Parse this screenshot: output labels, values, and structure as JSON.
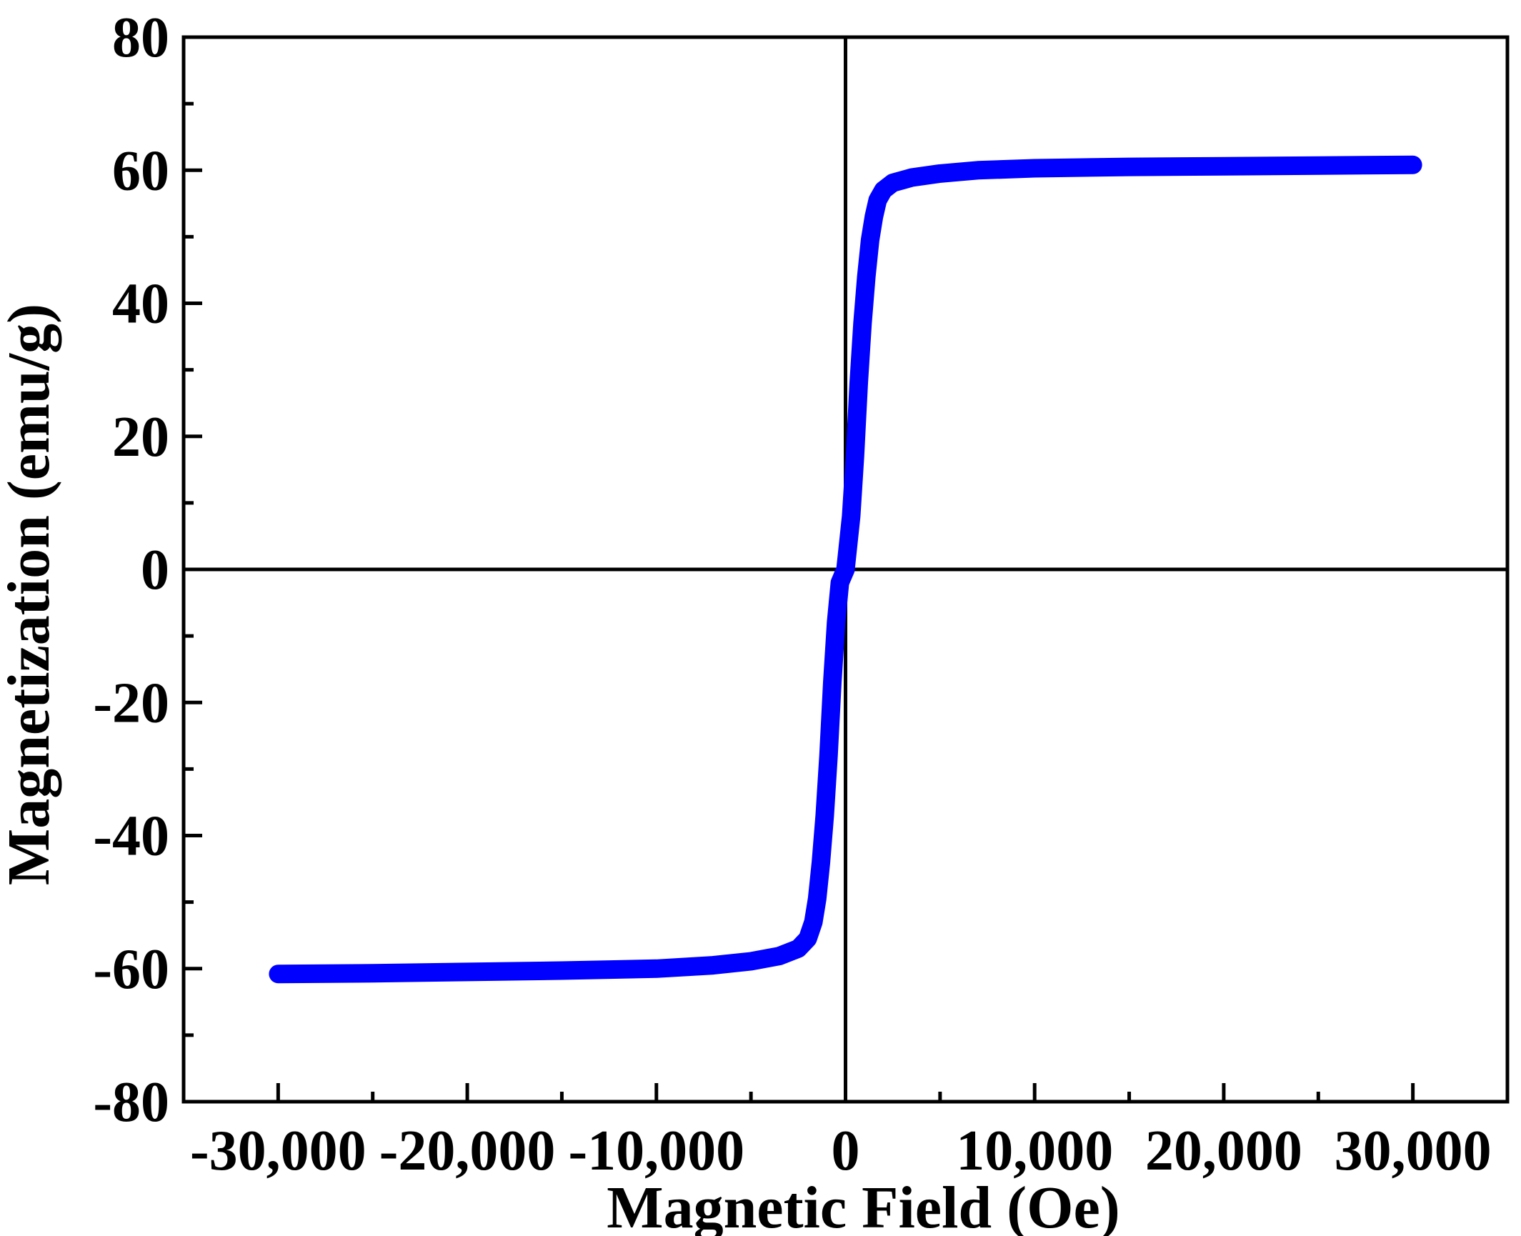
{
  "chart_data": {
    "type": "line",
    "title": "",
    "xlabel": "Magnetic Field (Oe)",
    "ylabel": "Magnetization (emu/g)",
    "xlim": [
      -35000,
      35000
    ],
    "ylim": [
      -80,
      80
    ],
    "x_ticks": [
      -30000,
      -20000,
      -10000,
      0,
      10000,
      20000,
      30000
    ],
    "x_tick_labels": [
      "-30,000",
      "-20,000",
      "-10,000",
      "0",
      "10,000",
      "20,000",
      "30,000"
    ],
    "y_ticks": [
      -80,
      -60,
      -40,
      -20,
      0,
      20,
      40,
      60,
      80
    ],
    "y_tick_labels": [
      "-80",
      "-60",
      "-40",
      "-20",
      "0",
      "20",
      "40",
      "60",
      "80"
    ],
    "grid": false,
    "legend": "none",
    "zero_lines": true,
    "series": [
      {
        "color": "#0000ff",
        "x": [
          -30000,
          -25000,
          -20000,
          -15000,
          -10000,
          -7000,
          -5000,
          -3500,
          -2500,
          -2000,
          -1700,
          -1500,
          -1300,
          -1100,
          -900,
          -700,
          -500,
          -300,
          0,
          300,
          500,
          700,
          900,
          1100,
          1300,
          1500,
          1700,
          2000,
          2500,
          3500,
          5000,
          7000,
          10000,
          15000,
          20000,
          25000,
          30000
        ],
        "y": [
          -60.8,
          -60.7,
          -60.5,
          -60.3,
          -60.0,
          -59.5,
          -58.9,
          -58.1,
          -57.0,
          -55.5,
          -53.0,
          -49.5,
          -44.0,
          -37.0,
          -28.0,
          -17.0,
          -8.0,
          -2.0,
          0,
          8.0,
          17.0,
          28.0,
          37.0,
          44.0,
          49.5,
          53.0,
          55.5,
          57.0,
          58.1,
          58.9,
          59.5,
          60.0,
          60.3,
          60.5,
          60.6,
          60.7,
          60.8
        ]
      }
    ]
  }
}
